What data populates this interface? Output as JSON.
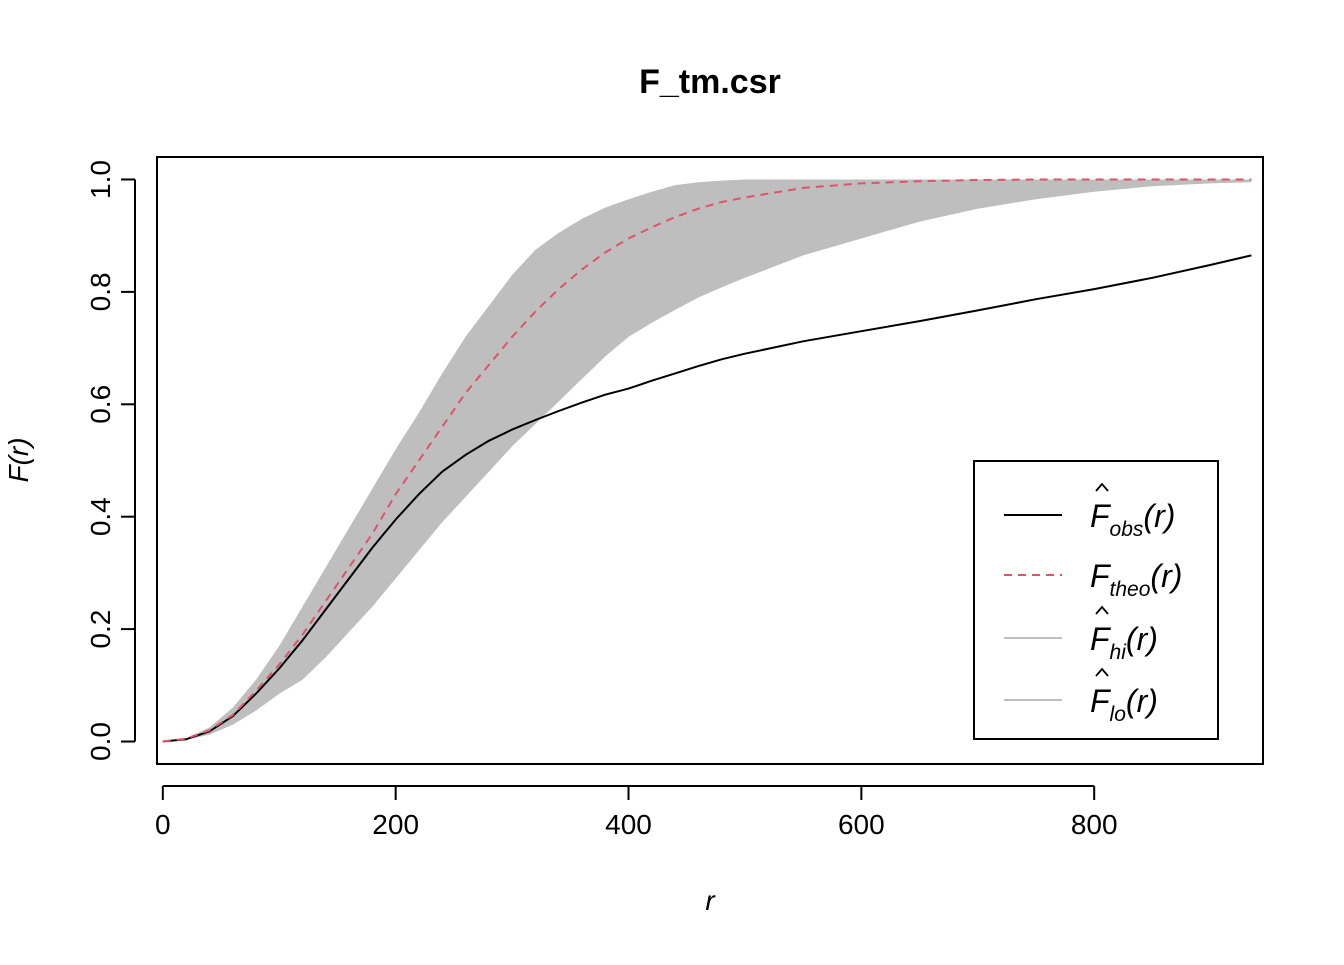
{
  "chart_data": {
    "type": "line",
    "title": "F_tm.csr",
    "xlabel": "r",
    "ylabel": "F(r)",
    "xlim": [
      -5,
      945
    ],
    "ylim": [
      -0.04,
      1.04
    ],
    "xticks": [
      0,
      200,
      400,
      600,
      800
    ],
    "yticks": [
      0.0,
      0.2,
      0.4,
      0.6,
      0.8,
      1.0
    ],
    "xtick_labels": [
      "0",
      "200",
      "400",
      "600",
      "800"
    ],
    "ytick_labels": [
      "0.0",
      "0.2",
      "0.4",
      "0.6",
      "0.8",
      "1.0"
    ],
    "grid": false,
    "legend_position": "bottom-right",
    "envelope": {
      "color": "#bebebe",
      "x": [
        0,
        20,
        40,
        60,
        80,
        100,
        120,
        140,
        160,
        180,
        200,
        220,
        240,
        260,
        280,
        300,
        320,
        340,
        360,
        380,
        400,
        420,
        440,
        460,
        480,
        500,
        550,
        600,
        650,
        700,
        750,
        800,
        850,
        900,
        935
      ],
      "hi": [
        0,
        0.006,
        0.025,
        0.06,
        0.11,
        0.17,
        0.24,
        0.31,
        0.38,
        0.45,
        0.52,
        0.585,
        0.655,
        0.72,
        0.775,
        0.83,
        0.875,
        0.905,
        0.93,
        0.95,
        0.965,
        0.978,
        0.99,
        0.995,
        0.998,
        1.0,
        1.0,
        1.0,
        1.0,
        1.0,
        1.0,
        1.0,
        1.0,
        1.0,
        1.0
      ],
      "lo": [
        0,
        0.003,
        0.012,
        0.03,
        0.055,
        0.085,
        0.11,
        0.15,
        0.195,
        0.24,
        0.29,
        0.34,
        0.39,
        0.435,
        0.48,
        0.525,
        0.565,
        0.605,
        0.645,
        0.685,
        0.72,
        0.745,
        0.768,
        0.79,
        0.808,
        0.825,
        0.865,
        0.895,
        0.925,
        0.948,
        0.965,
        0.978,
        0.988,
        0.993,
        0.995
      ]
    },
    "series": [
      {
        "name": "obs",
        "color": "#000000",
        "dash": "solid",
        "x": [
          0,
          20,
          40,
          60,
          80,
          100,
          120,
          140,
          160,
          180,
          200,
          220,
          240,
          260,
          280,
          300,
          320,
          340,
          360,
          380,
          400,
          420,
          440,
          460,
          480,
          500,
          550,
          600,
          650,
          700,
          750,
          800,
          850,
          900,
          935
        ],
        "y": [
          0,
          0.004,
          0.018,
          0.045,
          0.085,
          0.13,
          0.18,
          0.235,
          0.29,
          0.345,
          0.395,
          0.44,
          0.48,
          0.51,
          0.535,
          0.555,
          0.572,
          0.588,
          0.603,
          0.617,
          0.628,
          0.642,
          0.655,
          0.668,
          0.68,
          0.69,
          0.712,
          0.73,
          0.748,
          0.767,
          0.787,
          0.805,
          0.825,
          0.848,
          0.865
        ]
      },
      {
        "name": "theo",
        "color": "#df536b",
        "dash": "dashed",
        "x": [
          0,
          20,
          40,
          60,
          80,
          100,
          120,
          140,
          160,
          180,
          200,
          220,
          240,
          260,
          280,
          300,
          320,
          340,
          360,
          380,
          400,
          420,
          440,
          460,
          480,
          500,
          550,
          600,
          650,
          700,
          750,
          800,
          850,
          900,
          935
        ],
        "y": [
          0,
          0.005,
          0.02,
          0.047,
          0.09,
          0.137,
          0.19,
          0.25,
          0.31,
          0.37,
          0.44,
          0.5,
          0.56,
          0.62,
          0.67,
          0.72,
          0.765,
          0.805,
          0.84,
          0.87,
          0.895,
          0.915,
          0.933,
          0.948,
          0.96,
          0.968,
          0.985,
          0.993,
          0.997,
          0.999,
          1.0,
          1.0,
          1.0,
          1.0,
          1.0
        ]
      }
    ],
    "legend": [
      {
        "key": "obs",
        "symbol": "F",
        "hat": true,
        "sub": "obs",
        "arg": "(r)",
        "color": "#000000",
        "dash": "solid"
      },
      {
        "key": "theo",
        "symbol": "F",
        "hat": false,
        "sub": "theo",
        "arg": "(r)",
        "color": "#df536b",
        "dash": "dashed"
      },
      {
        "key": "hi",
        "symbol": "F",
        "hat": true,
        "sub": "hi",
        "arg": "(r)",
        "color": "#bebebe",
        "dash": "solid"
      },
      {
        "key": "lo",
        "symbol": "F",
        "hat": true,
        "sub": "lo",
        "arg": "(r)",
        "color": "#bebebe",
        "dash": "solid"
      }
    ]
  }
}
